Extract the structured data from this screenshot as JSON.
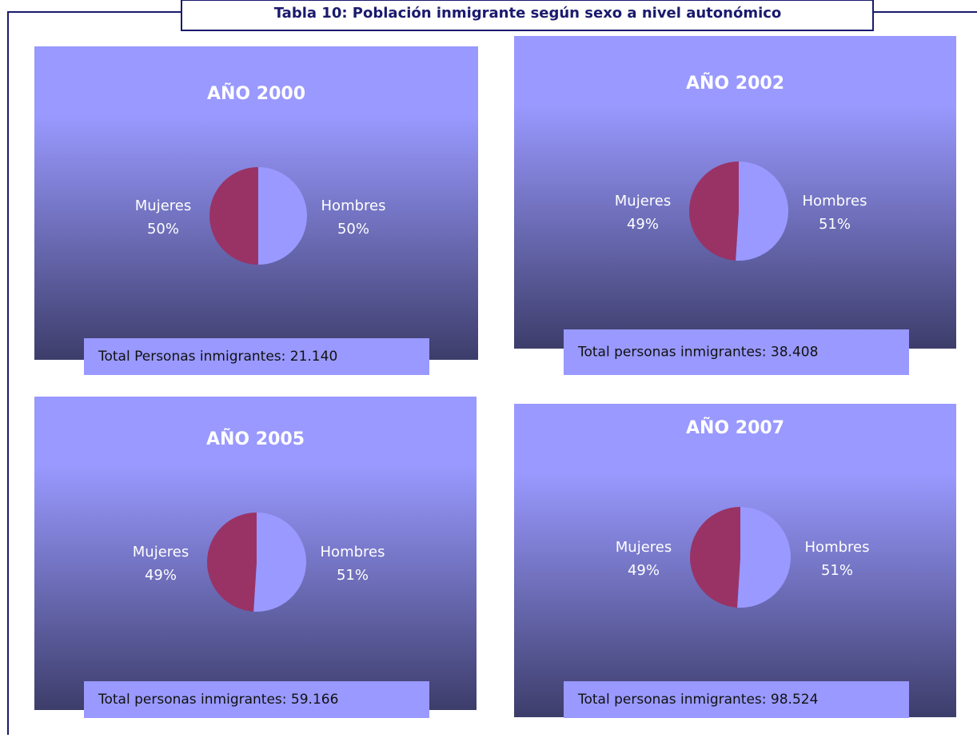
{
  "header": {
    "title": "Tabla 10: Población inmigrante según sexo a nivel autonómico"
  },
  "chart_data": [
    {
      "type": "pie",
      "title": "AÑO 2000",
      "categories": [
        "Hombres",
        "Mujeres"
      ],
      "values": [
        50,
        50
      ],
      "value_labels": [
        "50%",
        "50%"
      ],
      "colors": [
        "#9999ff",
        "#993366"
      ],
      "note": "Total Personas inmigrantes: 21.140"
    },
    {
      "type": "pie",
      "title": "AÑO 2002",
      "categories": [
        "Hombres",
        "Mujeres"
      ],
      "values": [
        51,
        49
      ],
      "value_labels": [
        "51%",
        "49%"
      ],
      "colors": [
        "#9999ff",
        "#993366"
      ],
      "note": "Total personas inmigrantes: 38.408"
    },
    {
      "type": "pie",
      "title": "AÑO 2005",
      "categories": [
        "Hombres",
        "Mujeres"
      ],
      "values": [
        51,
        49
      ],
      "value_labels": [
        "51%",
        "49%"
      ],
      "colors": [
        "#9999ff",
        "#993366"
      ],
      "note": "Total personas inmigrantes: 59.166"
    },
    {
      "type": "pie",
      "title": "AÑO 2007",
      "categories": [
        "Hombres",
        "Mujeres"
      ],
      "values": [
        51,
        49
      ],
      "value_labels": [
        "51%",
        "49%"
      ],
      "colors": [
        "#9999ff",
        "#993366"
      ],
      "note": "Total personas inmigrantes: 98.524"
    }
  ]
}
